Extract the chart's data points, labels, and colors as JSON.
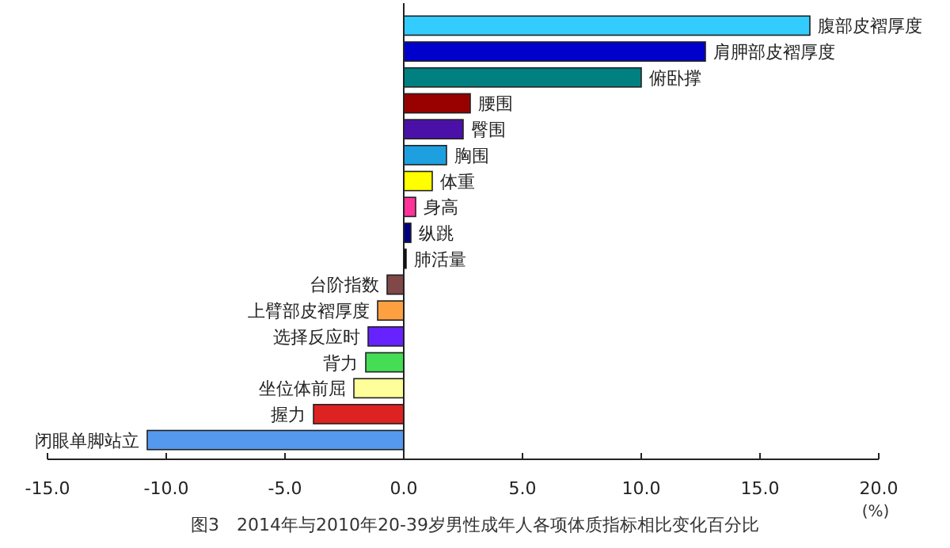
{
  "chart_data": {
    "type": "bar",
    "orientation": "horizontal",
    "title": "图3　2014年与2010年20-39岁男性成年人各项体质指标相比变化百分比",
    "xlabel": "(%)",
    "categories": [
      "腹部皮褶厚度",
      "肩胛部皮褶厚度",
      "俯卧撑",
      "腰围",
      "臀围",
      "胸围",
      "体重",
      "身高",
      "纵跳",
      "肺活量",
      "台阶指数",
      "上臂部皮褶厚度",
      "选择反应时",
      "背力",
      "坐位体前屈",
      "握力",
      "闭眼单脚站立"
    ],
    "values": [
      17.1,
      12.7,
      10.0,
      2.8,
      2.5,
      1.8,
      1.2,
      0.5,
      0.3,
      0.1,
      -0.7,
      -1.1,
      -1.5,
      -1.6,
      -2.1,
      -3.8,
      -10.8
    ],
    "colors": [
      "#33ccff",
      "#0000cc",
      "#008080",
      "#990000",
      "#4b10a8",
      "#1ea0e0",
      "#ffff00",
      "#ff3399",
      "#000080",
      "#000000",
      "#804848",
      "#ffa040",
      "#6622ff",
      "#44dd55",
      "#ffff99",
      "#dd2222",
      "#5599ee"
    ],
    "xlim": [
      -15,
      20
    ],
    "xticks": [
      {
        "value": -15,
        "label": "-15.0"
      },
      {
        "value": -10,
        "label": "-10.0"
      },
      {
        "value": -5,
        "label": "-5.0"
      },
      {
        "value": 0,
        "label": "0.0"
      },
      {
        "value": 5,
        "label": "5.0"
      },
      {
        "value": 10,
        "label": "10.0"
      },
      {
        "value": 15,
        "label": "15.0"
      },
      {
        "value": 20,
        "label": "20.0"
      }
    ]
  }
}
